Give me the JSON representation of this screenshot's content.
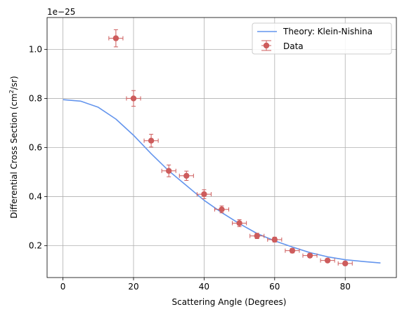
{
  "chart_data": {
    "type": "scatter",
    "offset_label": "1e−25",
    "xlabel": "Scattering Angle (Degrees)",
    "ylabel_main": "Differential Cross Section (cm",
    "ylabel_sup": "2",
    "ylabel_tail": "/sr)",
    "xlim": [
      -4.5,
      94.5
    ],
    "ylim": [
      0.0705,
      1.1295
    ],
    "x_ticks": [
      0,
      20,
      40,
      60,
      80
    ],
    "x_tick_labels": [
      "0",
      "20",
      "40",
      "60",
      "80"
    ],
    "y_ticks": [
      0.2,
      0.4,
      0.6,
      0.8,
      1.0
    ],
    "y_tick_labels": [
      "0.2",
      "0.4",
      "0.6",
      "0.8",
      "1.0"
    ],
    "grid": true,
    "legend_position": "upper-right",
    "series": [
      {
        "name": "Theory: Klein-Nishina",
        "kind": "line",
        "color": "#6495ED",
        "x": [
          0,
          5,
          10,
          15,
          20,
          25,
          30,
          35,
          40,
          45,
          50,
          55,
          60,
          65,
          70,
          75,
          80,
          85,
          90
        ],
        "y": [
          0.795,
          0.789,
          0.764,
          0.716,
          0.65,
          0.575,
          0.505,
          0.445,
          0.385,
          0.335,
          0.29,
          0.25,
          0.22,
          0.195,
          0.172,
          0.155,
          0.143,
          0.136,
          0.13
        ]
      },
      {
        "name": "Data",
        "kind": "errorbar",
        "color": "#CD5C5C",
        "x": [
          15,
          20,
          25,
          30,
          35,
          40,
          45,
          50,
          55,
          60,
          65,
          70,
          75,
          80
        ],
        "y": [
          1.045,
          0.8,
          0.628,
          0.505,
          0.485,
          0.41,
          0.348,
          0.292,
          0.24,
          0.225,
          0.18,
          0.16,
          0.14,
          0.128
        ],
        "xerr": [
          2,
          2,
          2,
          2,
          2,
          2,
          2,
          2,
          2,
          2,
          2,
          2,
          2,
          2
        ],
        "yerr": [
          0.035,
          0.032,
          0.026,
          0.024,
          0.019,
          0.018,
          0.014,
          0.014,
          0.011,
          0.01,
          0.009,
          0.008,
          0.007,
          0.007
        ]
      }
    ]
  }
}
